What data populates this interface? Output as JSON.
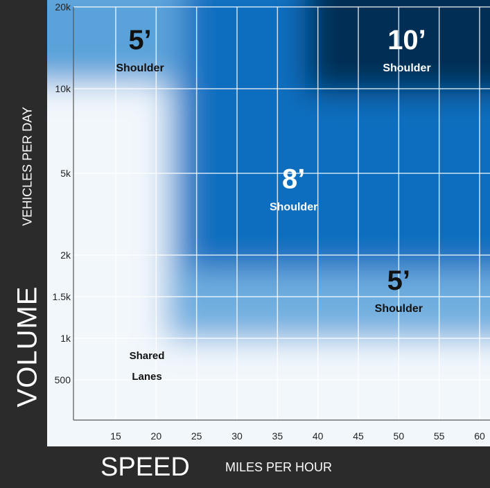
{
  "chart_data": {
    "type": "heatmap",
    "x_label_main": "SPEED",
    "x_label_sub": "MILES PER HOUR",
    "y_label_main": "VOLUME",
    "y_label_sub": "VEHICLES PER DAY",
    "x_ticks": [
      15,
      20,
      25,
      30,
      35,
      40,
      45,
      50,
      55,
      60
    ],
    "x_tick_labels": [
      "15",
      "20",
      "25",
      "30",
      "35",
      "40",
      "45",
      "50",
      "55",
      "60"
    ],
    "y_ticks": [
      {
        "value": 500,
        "label": "500"
      },
      {
        "value": 1000,
        "label": "1k"
      },
      {
        "value": 1500,
        "label": "1.5k"
      },
      {
        "value": 2000,
        "label": "2k"
      },
      {
        "value": 5000,
        "label": "5k"
      },
      {
        "value": 10000,
        "label": "10k"
      },
      {
        "value": 20000,
        "label": "20k"
      }
    ],
    "zones": [
      {
        "size": "",
        "label": "Shared Lanes",
        "x": 18,
        "y": 700,
        "color": "#f2f7fc",
        "text_color": "#111111"
      },
      {
        "size": "5’",
        "label": "Shoulder",
        "x": 50,
        "y": 1500,
        "color": "#6faedf",
        "text_color": "#111111"
      },
      {
        "size": "8’",
        "label": "Shoulder",
        "x": 37,
        "y": 4200,
        "color": "#0e6ec0",
        "text_color": "#ffffff"
      },
      {
        "size": "5’",
        "label": "Shoulder",
        "x": 18,
        "y": 14000,
        "color": "#5aa3da",
        "text_color": "#111111"
      },
      {
        "size": "10’",
        "label": "Shoulder",
        "x": 51,
        "y": 14000,
        "color": "#062d55",
        "text_color": "#ffffff"
      }
    ]
  }
}
